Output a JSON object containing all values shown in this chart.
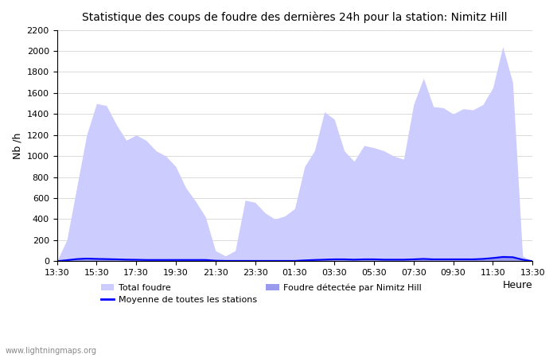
{
  "title": "Statistique des coups de foudre des dernières 24h pour la station: Nimitz Hill",
  "ylabel": "Nb /h",
  "xlabel": "Heure",
  "xlim": [
    0,
    24
  ],
  "ylim": [
    0,
    2200
  ],
  "yticks": [
    0,
    200,
    400,
    600,
    800,
    1000,
    1200,
    1400,
    1600,
    1800,
    2000,
    2200
  ],
  "xtick_labels": [
    "13:30",
    "15:30",
    "17:30",
    "19:30",
    "21:30",
    "23:30",
    "01:30",
    "03:30",
    "05:30",
    "07:30",
    "09:30",
    "11:30",
    "13:30"
  ],
  "xtick_positions": [
    0,
    2,
    4,
    6,
    8,
    10,
    12,
    14,
    16,
    18,
    20,
    22,
    24
  ],
  "color_total": "#ccccff",
  "color_local": "#9999ee",
  "color_mean": "#0000ff",
  "watermark": "www.lightningmaps.org",
  "legend_total": "Total foudre",
  "legend_mean": "Moyenne de toutes les stations",
  "legend_local": "Foudre détectée par Nimitz Hill",
  "total_x": [
    0,
    0.5,
    1.0,
    1.5,
    2.0,
    2.5,
    3.0,
    3.5,
    4.0,
    4.5,
    5.0,
    5.5,
    6.0,
    6.5,
    7.0,
    7.5,
    8.0,
    8.5,
    9.0,
    9.5,
    10.0,
    10.5,
    11.0,
    11.5,
    12.0,
    12.5,
    13.0,
    13.5,
    14.0,
    14.5,
    15.0,
    15.5,
    16.0,
    16.5,
    17.0,
    17.5,
    18.0,
    18.5,
    19.0,
    19.5,
    20.0,
    20.5,
    21.0,
    21.5,
    22.0,
    22.5,
    23.0,
    23.5,
    24.0
  ],
  "total_y": [
    0,
    200,
    700,
    1200,
    1500,
    1480,
    1300,
    1150,
    1200,
    1150,
    1050,
    1000,
    900,
    700,
    570,
    420,
    100,
    50,
    100,
    580,
    560,
    460,
    400,
    430,
    500,
    900,
    1050,
    1420,
    1350,
    1050,
    950,
    1100,
    1080,
    1050,
    1000,
    970,
    1490,
    1740,
    1470,
    1460,
    1400,
    1450,
    1440,
    1490,
    1650,
    2040,
    1700,
    50,
    0
  ],
  "local_y": [
    0,
    15,
    30,
    35,
    30,
    30,
    25,
    20,
    18,
    15,
    15,
    15,
    15,
    15,
    15,
    15,
    5,
    5,
    5,
    5,
    5,
    5,
    5,
    5,
    5,
    10,
    15,
    20,
    25,
    25,
    20,
    25,
    25,
    20,
    20,
    20,
    25,
    30,
    25,
    25,
    25,
    25,
    25,
    30,
    40,
    55,
    50,
    20,
    0
  ],
  "mean_y": [
    0,
    10,
    20,
    25,
    22,
    20,
    18,
    15,
    14,
    12,
    12,
    12,
    12,
    12,
    12,
    12,
    5,
    3,
    3,
    3,
    3,
    3,
    3,
    3,
    3,
    8,
    12,
    15,
    18,
    18,
    15,
    18,
    18,
    15,
    15,
    15,
    18,
    22,
    18,
    18,
    18,
    18,
    18,
    22,
    30,
    40,
    38,
    15,
    0
  ]
}
